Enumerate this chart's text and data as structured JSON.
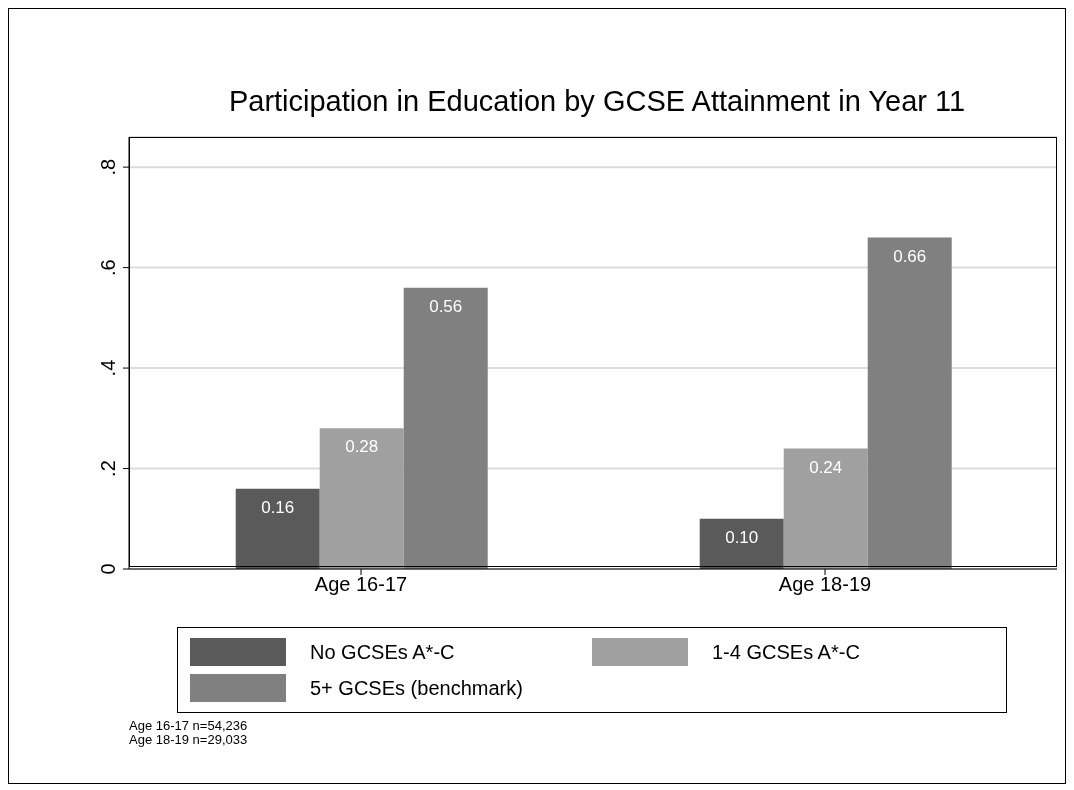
{
  "chart_data": {
    "type": "bar",
    "title": "Participation in Education by GCSE Attainment in Year 11",
    "categories": [
      "Age 16-17",
      "Age 18-19"
    ],
    "series": [
      {
        "name": "No GCSEs A*-C",
        "color": "#5a5a5a",
        "values": [
          0.16,
          0.1
        ],
        "value_labels": [
          "0.16",
          "0.10"
        ]
      },
      {
        "name": "1-4 GCSEs A*-C",
        "color": "#a0a0a0",
        "values": [
          0.28,
          0.24
        ],
        "value_labels": [
          "0.28",
          "0.24"
        ]
      },
      {
        "name": "5+ GCSEs (benchmark)",
        "color": "#808080",
        "values": [
          0.56,
          0.66
        ],
        "value_labels": [
          "0.56",
          "0.66"
        ]
      }
    ],
    "ylim": [
      0,
      0.86
    ],
    "yticks": [
      {
        "value": 0,
        "label": "0"
      },
      {
        "value": 0.2,
        "label": ".2"
      },
      {
        "value": 0.4,
        "label": ".4"
      },
      {
        "value": 0.6,
        "label": ".6"
      },
      {
        "value": 0.8,
        "label": ".8"
      }
    ],
    "grid": "y",
    "legend": "bottom",
    "annotations": [
      "Age 16-17 n=54,236",
      "Age 18-19 n=29,033"
    ]
  }
}
